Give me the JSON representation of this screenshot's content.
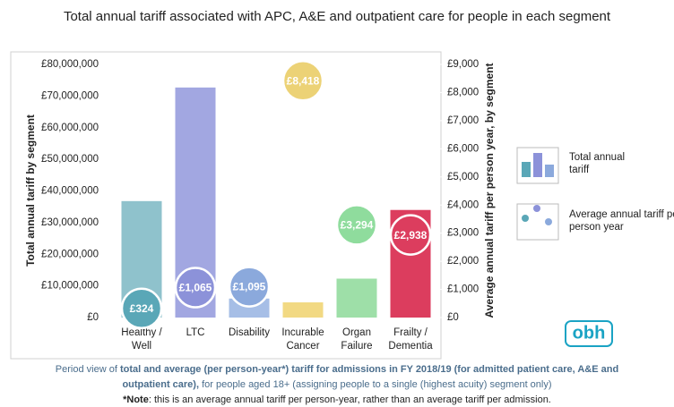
{
  "chart_data": {
    "type": "bar_bubble",
    "title": "Total annual tariff associated with APC, A&E and outpatient care for people in each segment",
    "ylabel": "Total annual tariff by segment",
    "y2label": "Average annual tariff per person year, by segment",
    "categories": [
      "Healthy / Well",
      "LTC",
      "Disability",
      "Incurable Cancer",
      "Organ Failure",
      "Frailty / Dementia"
    ],
    "series": [
      {
        "name": "Total annual tariff",
        "colors": [
          "#8fc2cc",
          "#a2a7e1",
          "#a6bee6",
          "#f2d983",
          "#9edfa8",
          "#dc3d5e"
        ],
        "values": [
          36800000,
          72700000,
          6000000,
          4800000,
          12300000,
          34000000
        ]
      },
      {
        "name": "Average annual tariff per person year",
        "axis": "y2",
        "colors": [
          "#5aa7b7",
          "#8c92d9",
          "#8ba9dc",
          "#ecd276",
          "#8fdc9d",
          "#dc3d5e"
        ],
        "values": [
          324,
          1065,
          1095,
          8418,
          3294,
          2938
        ],
        "value_labels": [
          "£324",
          "£1,065",
          "£1,095",
          "£8,418",
          "£3,294",
          "£2,938"
        ]
      }
    ],
    "ylim": [
      0,
      80000000
    ],
    "yticks": [
      {
        "value": 0,
        "label": "£0"
      },
      {
        "value": 10000000,
        "label": "£10,000,000"
      },
      {
        "value": 20000000,
        "label": "£20,000,000"
      },
      {
        "value": 30000000,
        "label": "£30,000,000"
      },
      {
        "value": 40000000,
        "label": "£40,000,000"
      },
      {
        "value": 50000000,
        "label": "£50,000,000"
      },
      {
        "value": 60000000,
        "label": "£60,000,000"
      },
      {
        "value": 70000000,
        "label": "£70,000,000"
      },
      {
        "value": 80000000,
        "label": "£80,000,000"
      }
    ],
    "y2lim": [
      0,
      9000
    ],
    "y2ticks": [
      {
        "value": 0,
        "label": "£0"
      },
      {
        "value": 1000,
        "label": "£1,000"
      },
      {
        "value": 2000,
        "label": "£2,000"
      },
      {
        "value": 3000,
        "label": "£3,000"
      },
      {
        "value": 4000,
        "label": "£4,000"
      },
      {
        "value": 5000,
        "label": "£5,000"
      },
      {
        "value": 6000,
        "label": "£6,000"
      },
      {
        "value": 7000,
        "label": "£7,000"
      },
      {
        "value": 8000,
        "label": "£8,000"
      },
      {
        "value": 9000,
        "label": "£9,000"
      }
    ],
    "logo": "obh",
    "footnote": [
      [
        {
          "text": "Period view of ",
          "bold": false
        },
        {
          "text": "total and average (per person-year*) tariff for admissions in FY 2018/19 (for admitted patient care, A&E and",
          "bold": true
        }
      ],
      [
        {
          "text": "outpatient care),",
          "bold": true
        },
        {
          "text": " for people aged 18+ (assigning people to a single (highest acuity) segment only)",
          "bold": false
        }
      ],
      [
        {
          "text": "*Note",
          "bold": true
        },
        {
          "text": ": this is an average annual tariff per person-year, rather than an average tariff per admission.",
          "bold": false
        }
      ]
    ]
  }
}
